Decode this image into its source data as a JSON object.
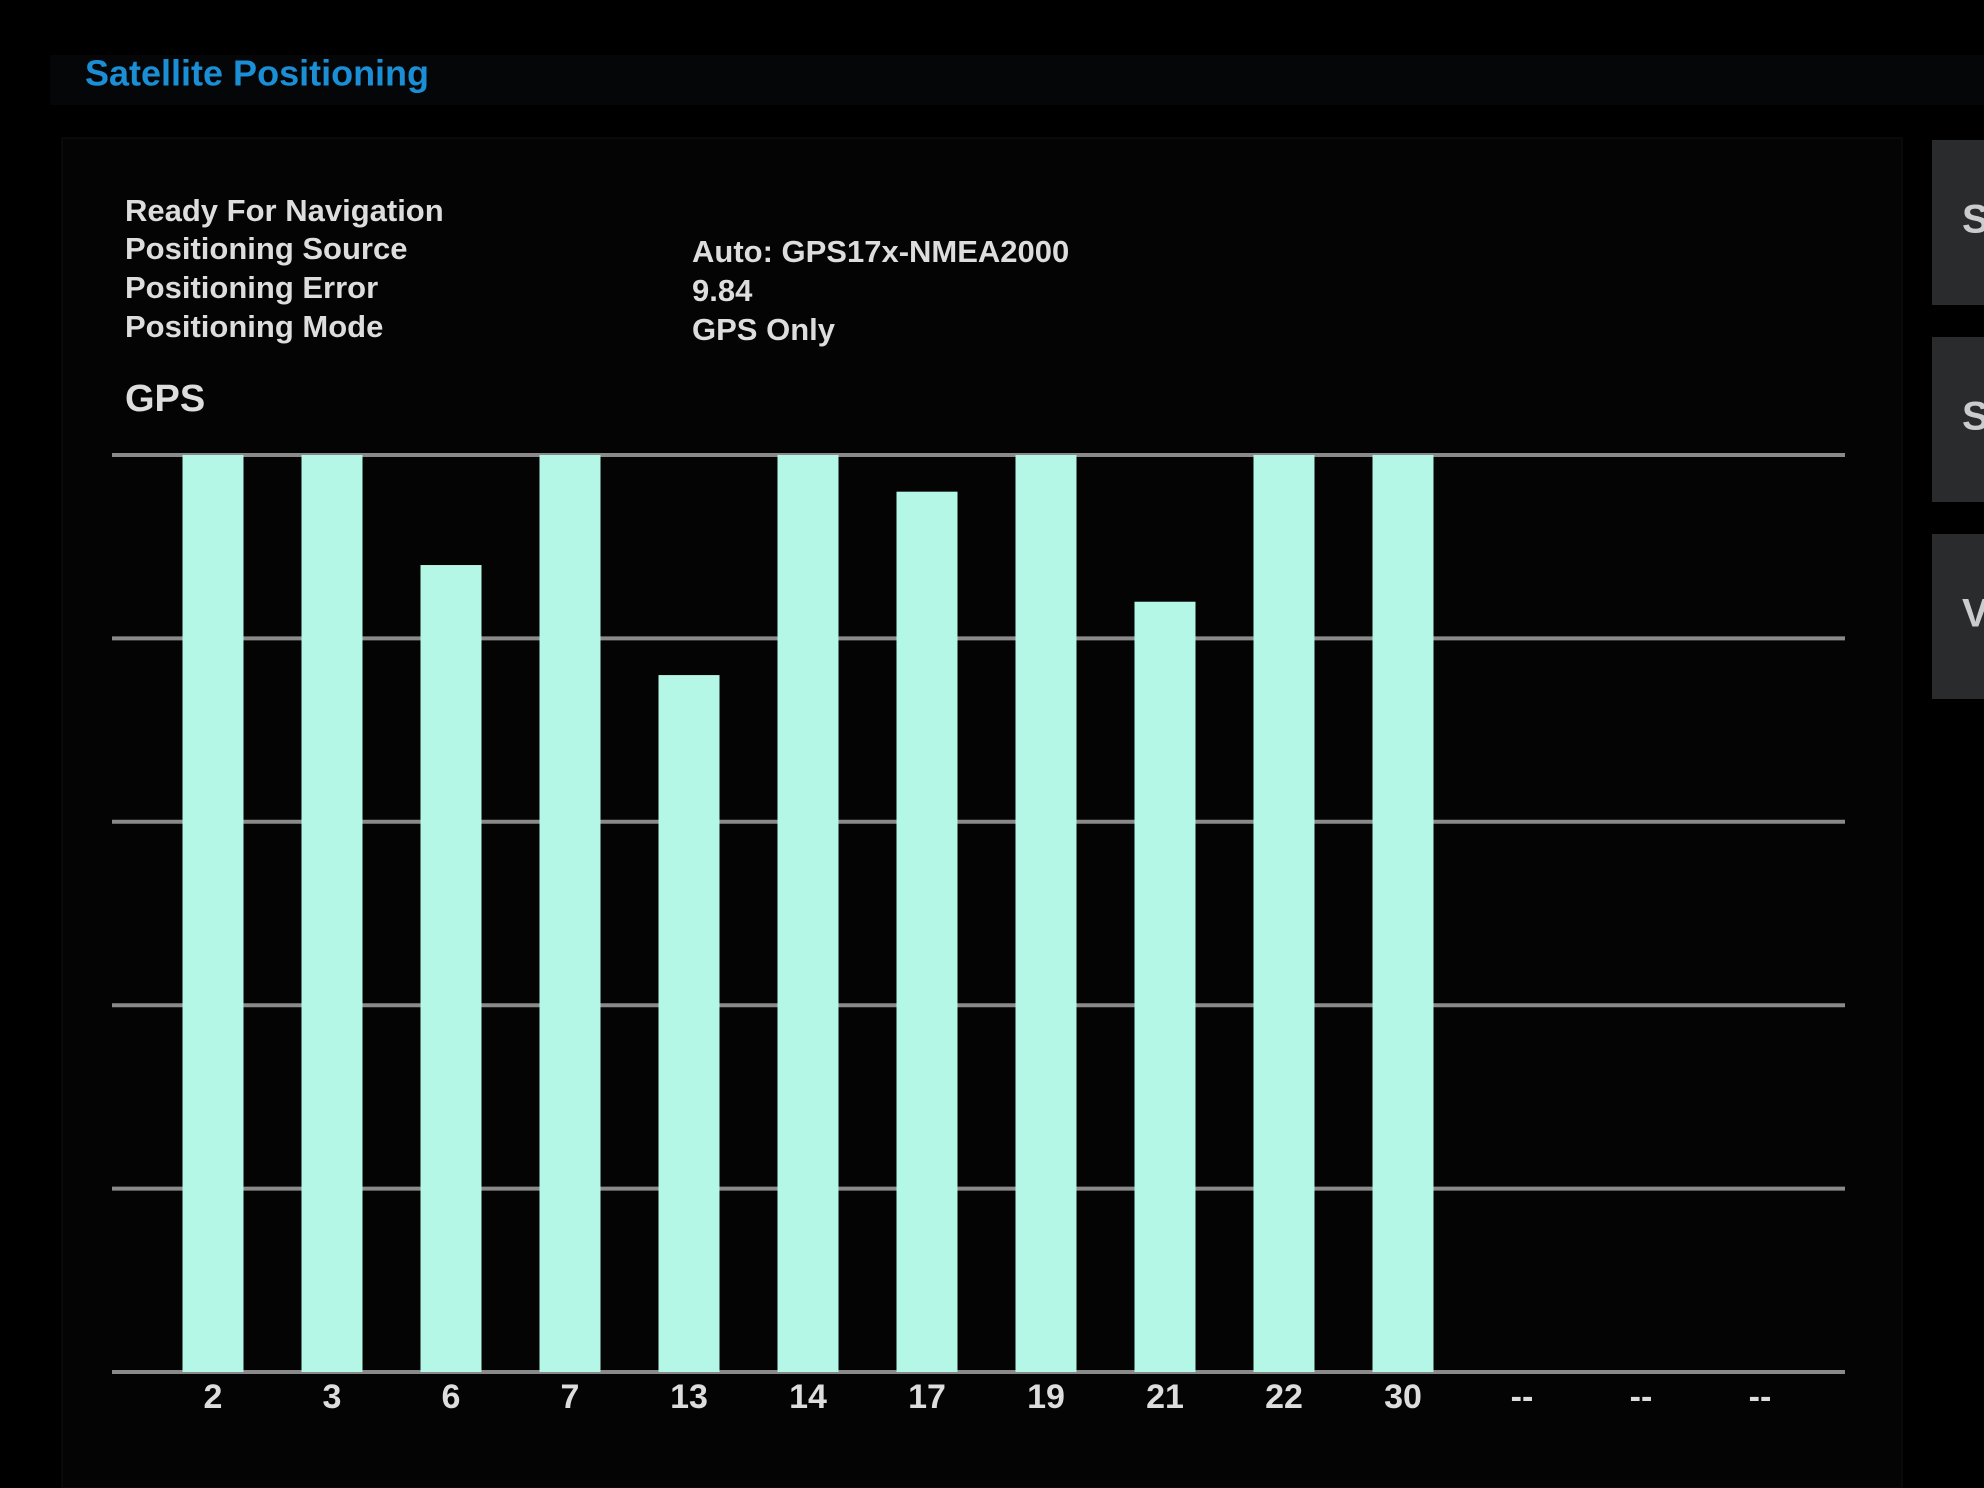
{
  "header": {
    "title": "Satellite Positioning"
  },
  "status": {
    "ready": "Ready For Navigation",
    "rows": [
      [
        "Positioning Source",
        "Auto: GPS17x-NMEA2000"
      ],
      [
        "Positioning Error",
        "9.84"
      ],
      [
        "Positioning Mode",
        "GPS Only"
      ]
    ]
  },
  "side_buttons": [
    "S",
    "S",
    "V"
  ],
  "chart_data": {
    "type": "bar",
    "title": "GPS",
    "categories": [
      "2",
      "3",
      "6",
      "7",
      "13",
      "14",
      "17",
      "19",
      "21",
      "22",
      "30",
      "--",
      "--",
      "--"
    ],
    "values": [
      5,
      5,
      4.4,
      5,
      3.8,
      5,
      4.8,
      5,
      4.2,
      5,
      5,
      null,
      null,
      null
    ],
    "color": "#b4f7e6",
    "ylim": [
      0,
      5
    ],
    "yticks": [
      0,
      1,
      2,
      3,
      4,
      5
    ],
    "grid": true
  }
}
